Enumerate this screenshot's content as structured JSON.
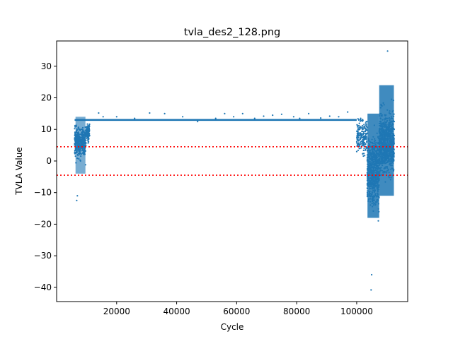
{
  "chart_data": {
    "type": "scatter",
    "title": "tvla_des2_128.png",
    "xlabel": "Cycle",
    "ylabel": "TVLA Value",
    "xlim": [
      0,
      117000
    ],
    "ylim": [
      -44.5,
      38
    ],
    "xticks": [
      20000,
      40000,
      60000,
      80000,
      100000
    ],
    "xtick_labels": [
      "20000",
      "40000",
      "60000",
      "80000",
      "100000"
    ],
    "yticks": [
      -40,
      -30,
      -20,
      -10,
      0,
      10,
      20,
      30
    ],
    "ytick_labels": [
      "−40",
      "−30",
      "−20",
      "−10",
      "0",
      "10",
      "20",
      "30"
    ],
    "grid": false,
    "marker_color": "#1f77b4",
    "threshold_color": "#ff0000",
    "thresholds": [
      4.5,
      -4.5
    ],
    "baseline": {
      "x_start": 6000,
      "x_end": 100000,
      "y": 13
    },
    "dense_regions": [
      {
        "x_start": 6000,
        "x_end": 11000,
        "y_min": -12.5,
        "y_max": 18
      },
      {
        "x_start": 100000,
        "x_end": 112500,
        "y_min": -41,
        "y_max": 35
      }
    ],
    "sparse_points": [
      [
        14000,
        15.2
      ],
      [
        15500,
        14
      ],
      [
        20000,
        14
      ],
      [
        26000,
        13.5
      ],
      [
        31000,
        15.2
      ],
      [
        36000,
        15
      ],
      [
        42000,
        14
      ],
      [
        47000,
        12.5
      ],
      [
        53000,
        13.5
      ],
      [
        56000,
        15
      ],
      [
        59000,
        14
      ],
      [
        62000,
        15
      ],
      [
        66000,
        13.5
      ],
      [
        69000,
        14.2
      ],
      [
        72000,
        14.5
      ],
      [
        75000,
        14.8
      ],
      [
        79000,
        14
      ],
      [
        81000,
        13.5
      ],
      [
        84000,
        15
      ],
      [
        88000,
        13.6
      ],
      [
        91000,
        14.2
      ],
      [
        94000,
        14
      ],
      [
        97000,
        15.5
      ]
    ],
    "extreme_points": [
      [
        110300,
        34.8
      ],
      [
        104800,
        -40.8
      ],
      [
        105000,
        -36
      ],
      [
        6700,
        -12.5
      ],
      [
        6900,
        -11
      ]
    ]
  }
}
